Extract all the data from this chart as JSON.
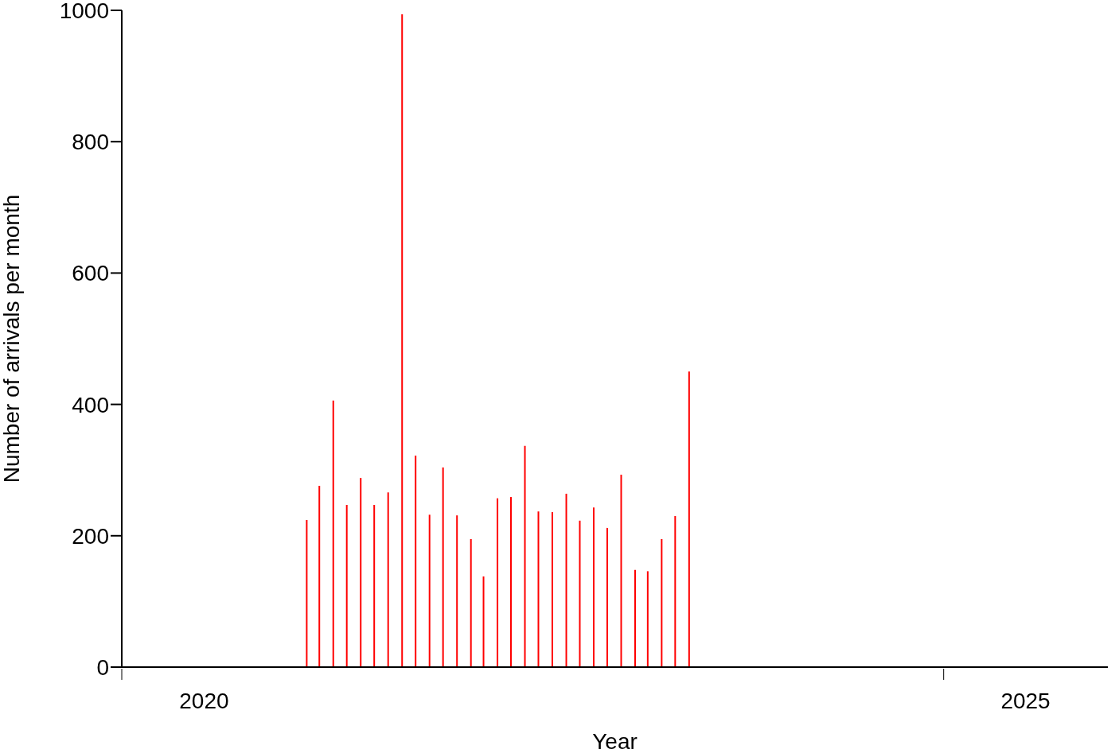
{
  "chart_data": {
    "type": "bar",
    "xlabel": "Year",
    "ylabel": "Number of arrivals per month",
    "x": [
      "2021-02-15",
      "2021-03-15",
      "2021-04-15",
      "2021-05-15",
      "2021-06-15",
      "2021-07-15",
      "2021-08-15",
      "2021-09-15",
      "2021-10-15",
      "2021-11-15",
      "2021-12-15",
      "2022-01-15",
      "2022-02-15",
      "2022-03-15",
      "2022-04-15",
      "2022-05-15",
      "2022-06-15",
      "2022-07-15",
      "2022-08-15",
      "2022-09-15",
      "2022-10-15",
      "2022-11-15",
      "2022-12-15",
      "2023-01-15",
      "2023-02-15",
      "2023-03-15",
      "2023-04-15",
      "2023-05-15",
      "2023-06-15"
    ],
    "values": [
      224,
      276,
      406,
      247,
      288,
      247,
      266,
      994,
      322,
      232,
      304,
      231,
      195,
      138,
      257,
      259,
      337,
      237,
      236,
      264,
      223,
      243,
      212,
      293,
      148,
      146,
      195,
      230,
      450
    ],
    "color": "#ff0000",
    "xlim": [
      "2020-01-01",
      "2026-01-01"
    ],
    "xticks": [
      {
        "value": "2020-01-01",
        "label": null
      },
      {
        "value": "2020-07-02",
        "label": "2020"
      },
      {
        "value": "2025-01-01",
        "label": null
      },
      {
        "value": "2025-07-02",
        "label": "2025"
      }
    ],
    "ylim": [
      0,
      1000
    ],
    "yticks": [
      0,
      200,
      400,
      600,
      800,
      1000
    ],
    "grid": false,
    "legend": false
  }
}
